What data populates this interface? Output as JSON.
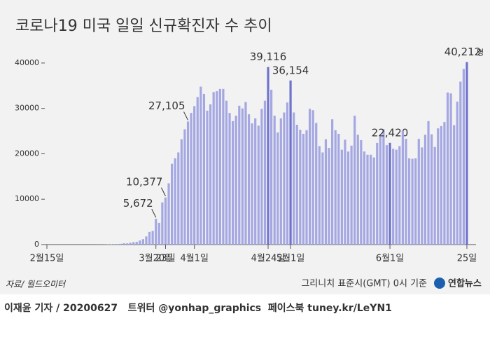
{
  "chart_data": {
    "type": "bar",
    "title": "코로나19 미국 일일 신규확진자 수 추이",
    "unit": "명",
    "source": "자료/ 월드오미터",
    "note": "그리니치 표준시(GMT) 0시 기준",
    "logo": "연합뉴스",
    "footer": "이재윤 기자 / 20200627   트위터 @yonhap_graphics  페이스북 tuney.kr/LeYN1",
    "color": "#a4a7e2",
    "ylim": [
      0,
      44000
    ],
    "yticks": [
      0,
      10000,
      20000,
      30000,
      40000
    ],
    "categories": [
      "2월15일",
      null,
      null,
      null,
      null,
      null,
      null,
      null,
      null,
      null,
      null,
      null,
      null,
      null,
      null,
      null,
      null,
      null,
      null,
      null,
      null,
      null,
      null,
      null,
      null,
      null,
      null,
      null,
      null,
      null,
      null,
      null,
      null,
      null,
      "3월20일",
      null,
      null,
      "23일",
      null,
      null,
      null,
      null,
      null,
      null,
      null,
      null,
      "4월1일",
      null,
      null,
      null,
      null,
      null,
      null,
      null,
      null,
      null,
      null,
      null,
      null,
      null,
      null,
      null,
      null,
      null,
      null,
      null,
      null,
      null,
      null,
      "4월24일",
      null,
      null,
      null,
      null,
      null,
      null,
      "5월1일",
      null,
      null,
      null,
      null,
      null,
      null,
      null,
      null,
      null,
      null,
      null,
      null,
      null,
      null,
      null,
      null,
      null,
      null,
      null,
      null,
      null,
      null,
      null,
      null,
      null,
      null,
      null,
      null,
      null,
      null,
      "6월1일",
      null,
      null,
      null,
      null,
      null,
      null,
      null,
      null,
      null,
      null,
      null,
      null,
      null,
      null,
      null,
      null,
      null,
      null,
      null,
      null,
      null,
      null,
      null,
      "25일"
    ],
    "values": [
      0,
      0,
      0,
      0,
      0,
      0,
      0,
      0,
      0,
      0,
      0,
      0,
      0,
      0,
      0,
      10,
      20,
      25,
      30,
      70,
      70,
      110,
      110,
      180,
      290,
      270,
      400,
      530,
      600,
      900,
      1200,
      1800,
      2800,
      3000,
      5672,
      4800,
      9300,
      10377,
      13500,
      17800,
      19000,
      20300,
      23200,
      25400,
      27105,
      29000,
      30500,
      32500,
      34800,
      33200,
      29500,
      30900,
      33600,
      33800,
      34300,
      34300,
      31700,
      29000,
      27200,
      28400,
      30600,
      30000,
      31400,
      28700,
      26700,
      27800,
      26200,
      29900,
      31700,
      39116,
      34100,
      28400,
      24700,
      27800,
      29100,
      31300,
      36154,
      29100,
      26400,
      25300,
      24400,
      25200,
      29900,
      29600,
      26800,
      21700,
      20300,
      23200,
      21300,
      27600,
      25200,
      24400,
      20900,
      23100,
      20500,
      21800,
      28400,
      24200,
      23000,
      20500,
      19800,
      19800,
      19200,
      22400,
      23800,
      25400,
      21900,
      22420,
      21100,
      20900,
      21700,
      25100,
      23300,
      19000,
      18900,
      19000,
      23300,
      21400,
      24200,
      27200,
      24300,
      21500,
      25600,
      26100,
      27000,
      33500,
      33300,
      26300,
      31500,
      35900,
      38700,
      40212
    ],
    "value_labels": [
      null,
      null,
      null,
      null,
      null,
      null,
      null,
      null,
      null,
      null,
      null,
      null,
      null,
      null,
      null,
      null,
      null,
      null,
      null,
      null,
      null,
      null,
      null,
      null,
      null,
      null,
      null,
      null,
      null,
      null,
      null,
      null,
      null,
      null,
      "5,672",
      null,
      null,
      "10,377",
      null,
      null,
      null,
      null,
      null,
      null,
      "27,105",
      null,
      null,
      null,
      null,
      null,
      null,
      null,
      null,
      null,
      null,
      null,
      null,
      null,
      null,
      null,
      null,
      null,
      null,
      null,
      null,
      null,
      null,
      null,
      null,
      "39,116",
      null,
      null,
      null,
      null,
      null,
      null,
      "36,154",
      null,
      null,
      null,
      null,
      null,
      null,
      null,
      null,
      null,
      null,
      null,
      null,
      null,
      null,
      null,
      null,
      null,
      null,
      null,
      null,
      null,
      null,
      null,
      null,
      null,
      null,
      null,
      null,
      null,
      null,
      "22,420",
      null,
      null,
      null,
      null,
      null,
      null,
      null,
      null,
      null,
      null,
      null,
      null,
      null,
      null,
      null,
      null,
      null,
      null,
      null,
      null,
      null,
      null,
      null,
      "40,212"
    ]
  }
}
